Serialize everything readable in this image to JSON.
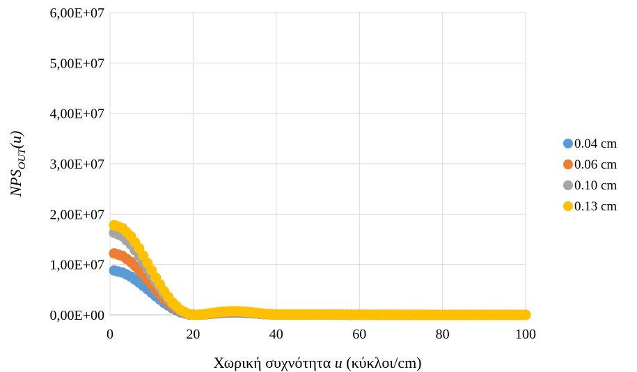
{
  "chart_data": {
    "type": "scatter",
    "xlabel": "Χωρική συχνότητα u (κύκλοι/cm)",
    "ylabel_main": "NPS",
    "ylabel_sub": "OUT",
    "ylabel_tail": "(u)",
    "xlim": [
      0,
      100
    ],
    "ylim": [
      0,
      60000000
    ],
    "x_ticks": [
      0,
      20,
      40,
      60,
      80,
      100
    ],
    "x_tick_labels": [
      "0",
      "20",
      "40",
      "60",
      "80",
      "100"
    ],
    "y_ticks": [
      0,
      10000000,
      20000000,
      30000000,
      40000000,
      50000000,
      60000000
    ],
    "y_tick_labels": [
      "0,00E+00",
      "1,00E+07",
      "2,00E+07",
      "3,00E+07",
      "4,00E+07",
      "5,00E+07",
      "6,00E+07"
    ],
    "grid": true,
    "legend_position": "right",
    "series": [
      {
        "name": "0.04 cm",
        "color": "#5B9BD5",
        "x": [
          1,
          3,
          5,
          7,
          9,
          11,
          13,
          15,
          17,
          19,
          21,
          23,
          25,
          27,
          29,
          31,
          33,
          35,
          37,
          40,
          50,
          60,
          70,
          80,
          90,
          100
        ],
        "y": [
          8800000,
          8400000,
          7600000,
          6400000,
          5100000,
          3700000,
          2400000,
          1300000,
          500000,
          80000,
          0,
          100000,
          250000,
          380000,
          450000,
          450000,
          380000,
          280000,
          150000,
          50000,
          50000,
          20000,
          10000,
          5000,
          3000,
          0
        ]
      },
      {
        "name": "0.06 cm",
        "color": "#ED7D31",
        "x": [
          1,
          3,
          5,
          7,
          9,
          11,
          13,
          15,
          17,
          19,
          21,
          23,
          25,
          27,
          29,
          31,
          33,
          35,
          37,
          40,
          50,
          60,
          70,
          80,
          90,
          100
        ],
        "y": [
          12200000,
          11700000,
          10500000,
          8900000,
          7000000,
          5000000,
          3200000,
          1700000,
          700000,
          100000,
          0,
          130000,
          320000,
          480000,
          560000,
          560000,
          470000,
          340000,
          180000,
          60000,
          60000,
          25000,
          12000,
          6000,
          3000,
          0
        ]
      },
      {
        "name": "0.10 cm",
        "color": "#A5A5A5",
        "x": [
          1,
          3,
          5,
          7,
          9,
          11,
          13,
          15,
          17,
          19,
          21,
          23,
          25,
          27,
          29,
          31,
          33,
          35,
          37,
          40,
          50,
          60,
          70,
          80,
          90,
          100
        ],
        "y": [
          16300000,
          15600000,
          14000000,
          11700000,
          9100000,
          6500000,
          4100000,
          2200000,
          800000,
          120000,
          0,
          160000,
          380000,
          560000,
          650000,
          650000,
          550000,
          390000,
          210000,
          70000,
          70000,
          30000,
          15000,
          7000,
          4000,
          0
        ]
      },
      {
        "name": "0.13 cm",
        "color": "#FFC000",
        "x": [
          1,
          3,
          5,
          7,
          9,
          11,
          13,
          15,
          17,
          19,
          21,
          23,
          25,
          27,
          29,
          31,
          33,
          35,
          37,
          40,
          50,
          60,
          70,
          80,
          90,
          100
        ],
        "y": [
          17800000,
          17200000,
          15600000,
          13200000,
          10300000,
          7400000,
          4700000,
          2500000,
          950000,
          150000,
          0,
          190000,
          420000,
          620000,
          720000,
          720000,
          600000,
          430000,
          230000,
          80000,
          80000,
          35000,
          17000,
          8000,
          4000,
          0
        ]
      }
    ]
  }
}
